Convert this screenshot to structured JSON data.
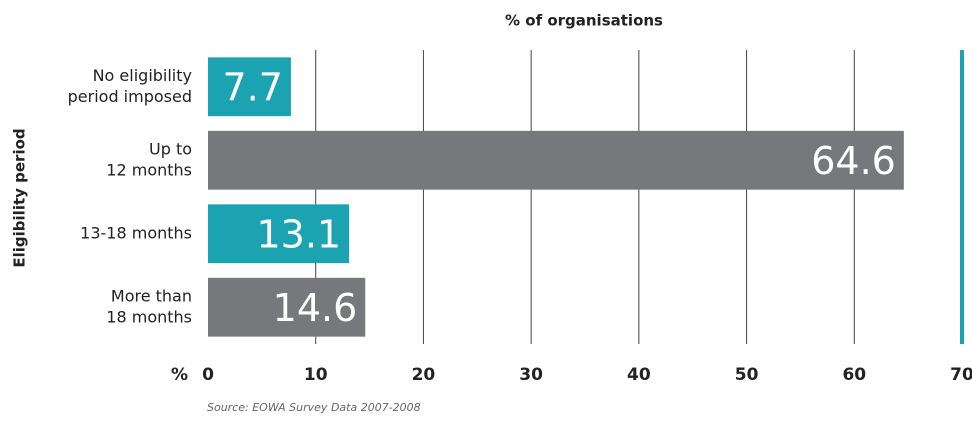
{
  "chart_data": {
    "type": "barh",
    "title": "% of organisations",
    "ylabel": "Eligibility period",
    "x_unit": "%",
    "source": "Source: EOWA Survey Data 2007-2008",
    "categories": [
      [
        "No eligibility",
        "period imposed"
      ],
      [
        "Up to",
        "12 months"
      ],
      [
        "13-18 months"
      ],
      [
        "More than",
        "18 months"
      ]
    ],
    "values": [
      7.7,
      64.6,
      13.1,
      14.6
    ],
    "colors": [
      "#1ba3b1",
      "#77787b",
      "#1ba3b1",
      "#77787b"
    ],
    "xlim": [
      0,
      70
    ],
    "xticks": [
      0,
      10,
      20,
      30,
      40,
      50,
      60,
      70
    ],
    "grid": true,
    "end_line_color": "#1ba3b1"
  }
}
